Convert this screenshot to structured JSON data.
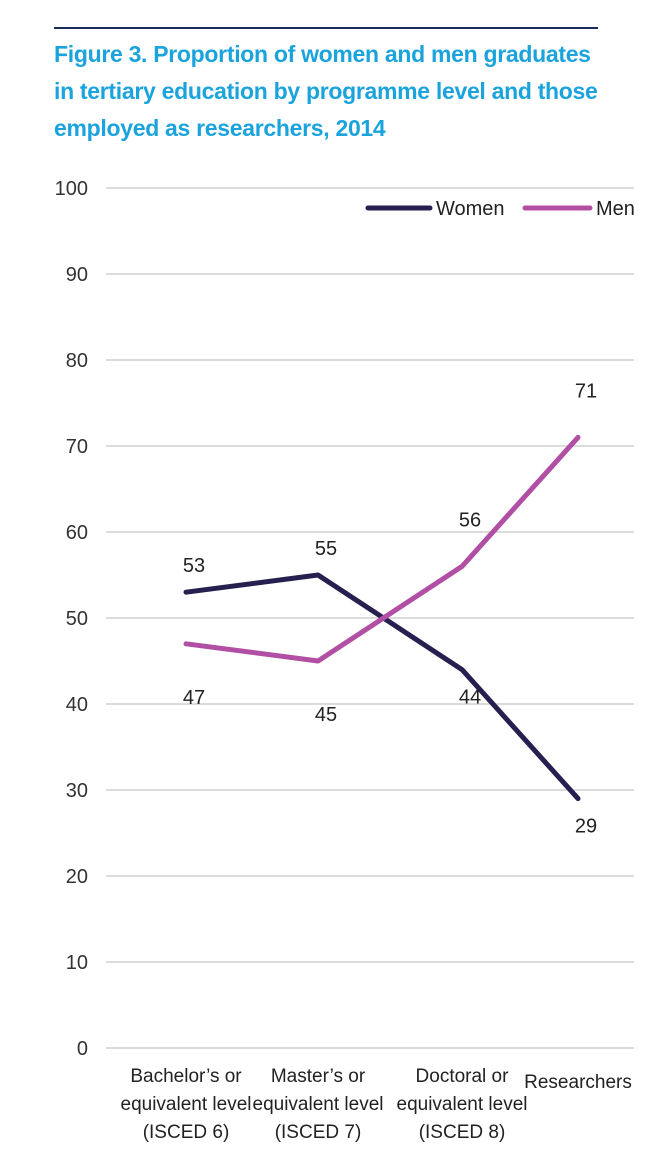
{
  "chart_data": {
    "type": "line",
    "title": "Figure 3. Proportion of women and men graduates in tertiary education by programme level and those employed as researchers, 2014",
    "title_lines": [
      "Figure 3. Proportion of women and men graduates",
      "in tertiary education by programme level and those",
      "employed as researchers, 2014"
    ],
    "categories": [
      [
        "Bachelor’s or",
        "equivalent level",
        "(ISCED 6)"
      ],
      [
        "Master’s or",
        "equivalent level",
        "(ISCED 7)"
      ],
      [
        "Doctoral or",
        "equivalent level",
        "(ISCED 8)"
      ],
      [
        "Researchers"
      ]
    ],
    "series": [
      {
        "name": "Women",
        "values": [
          53,
          55,
          44,
          29
        ],
        "labels": [
          "53",
          "55",
          "44",
          "29"
        ],
        "color": "#25204f"
      },
      {
        "name": "Men",
        "values": [
          47,
          45,
          56,
          71
        ],
        "labels": [
          "47",
          "45",
          "56",
          "71"
        ],
        "color": "#b14fa4"
      }
    ],
    "ylim": [
      0,
      100
    ],
    "yticks": [
      0,
      10,
      20,
      30,
      40,
      50,
      60,
      70,
      80,
      90,
      100
    ],
    "xlabel": "",
    "ylabel": "",
    "grid": true,
    "legend": "top-right",
    "grid_color": "#d0d0d0",
    "title_color": "#1aa3dd"
  }
}
